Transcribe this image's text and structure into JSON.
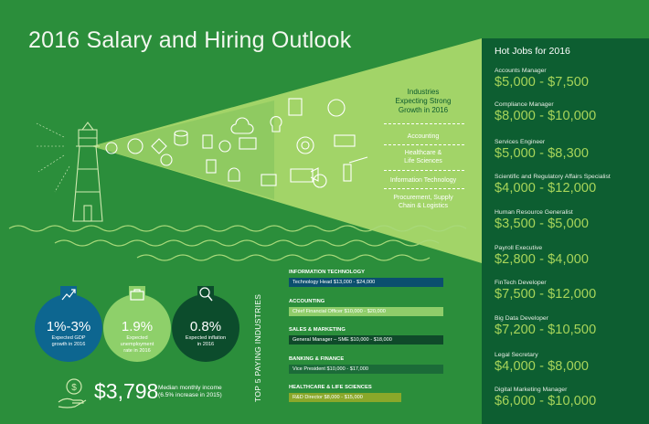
{
  "title": "2016 Salary and Hiring Outlook",
  "hot_jobs": {
    "title": "Hot Jobs for 2016",
    "jobs": [
      {
        "name": "Accounts Manager",
        "salary": "$5,000 - $7,500"
      },
      {
        "name": "Compliance Manager",
        "salary": "$8,000 - $10,000"
      },
      {
        "name": "Services Engineer",
        "salary": "$5,000 - $8,300"
      },
      {
        "name": "Scientific and Regulatory Affairs Specialist",
        "salary": "$4,000 - $12,000"
      },
      {
        "name": "Human Resource Generalist",
        "salary": "$3,500 - $5,000"
      },
      {
        "name": "Payroll Executive",
        "salary": "$2,800 - $4,000"
      },
      {
        "name": "FinTech Developer",
        "salary": "$7,500 - $12,000"
      },
      {
        "name": "Big Data Developer",
        "salary": "$7,200 - $10,500"
      },
      {
        "name": "Legal Secretary",
        "salary": "$4,000 - $8,000"
      },
      {
        "name": "Digital Marketing Manager",
        "salary": "$6,000 - $10,000"
      }
    ]
  },
  "industries": {
    "heading_line1": "Industries",
    "heading_line2": "Expecting Strong",
    "heading_line3": "Growth in 2016",
    "items": [
      {
        "line1": "Accounting",
        "line2": ""
      },
      {
        "line1": "Healthcare &",
        "line2": "Life Sciences"
      },
      {
        "line1": "Information Technology",
        "line2": ""
      },
      {
        "line1": "Procurement, Supply",
        "line2": "Chain & Logistics"
      }
    ]
  },
  "top5": {
    "label": "TOP 5 PAYING INDUSTRIES",
    "items": [
      {
        "category": "INFORMATION TECHNOLOGY",
        "role": "Technology Head $13,000 - $24,000",
        "color": "#0b4f6e",
        "fill": 0.86
      },
      {
        "category": "ACCOUNTING",
        "role": "Chief Financial Officer $10,000 - $20,000",
        "color": "#8fcd6a",
        "fill": 0.86
      },
      {
        "category": "SALES & MARKETING",
        "role": "General Manager – SME $10,000 - $18,000",
        "color": "#0f4a2a",
        "fill": 0.86
      },
      {
        "category": "BANKING & FINANCE",
        "role": "Vice President $10,000 - $17,000",
        "color": "#1b6b38",
        "fill": 0.86
      },
      {
        "category": "HEALTHCARE & LIFE SCIENCES",
        "role": "R&D Director $8,000 - $15,000",
        "color": "#8aa82a",
        "fill": 0.63
      }
    ]
  },
  "stats": [
    {
      "value": "1%-3%",
      "desc_line1": "Expected GDP",
      "desc_line2": "growth in 2016",
      "color": "#0d6690",
      "icon": "chart-up-icon"
    },
    {
      "value": "1.9%",
      "desc_line1": "Expected",
      "desc_line2": "unemployment",
      "desc_line3": "rate in 2016",
      "color": "#8ed06a",
      "icon": "briefcase-icon"
    },
    {
      "value": "0.8%",
      "desc_line1": "Expected inflation",
      "desc_line2": "in 2016",
      "color": "#0c4c2c",
      "icon": "magnifier-icon"
    }
  ],
  "income": {
    "value": "$3,798",
    "desc_line1": "Median monthly income",
    "desc_line2": "(6.5% increase in 2015)",
    "icon": "money-hand-icon"
  }
}
